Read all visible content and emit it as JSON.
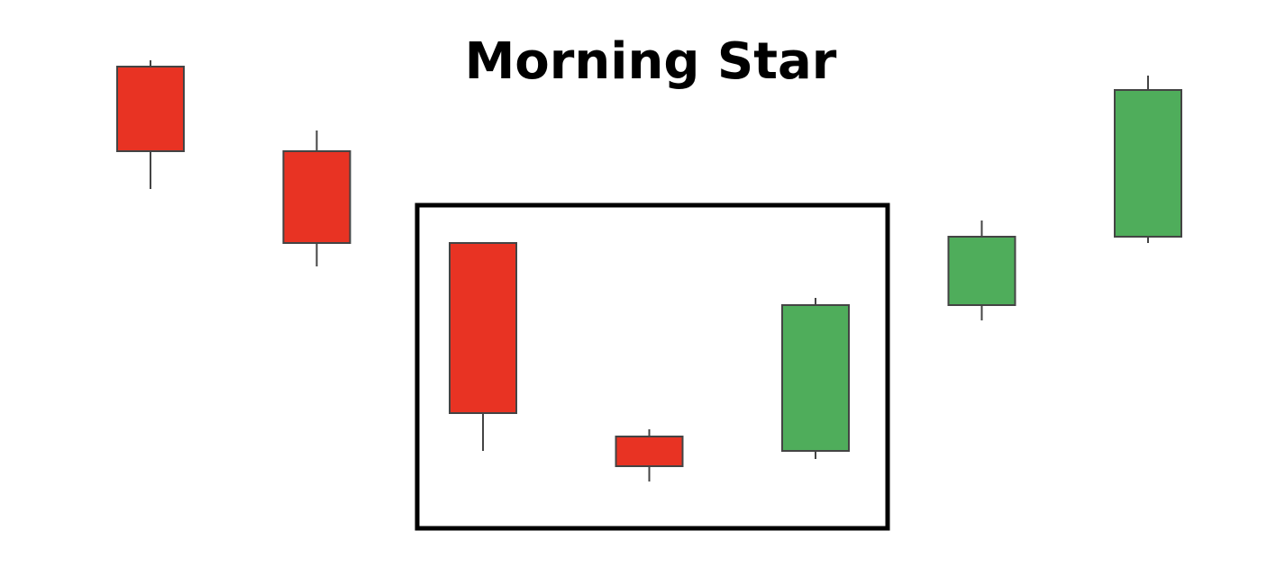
{
  "chart_data": {
    "type": "candlestick",
    "title": "Morning Star",
    "open": [
      556,
      462,
      360,
      145,
      129,
      291,
      367
    ],
    "high": [
      563,
      485,
      360,
      153,
      299,
      385,
      546
    ],
    "low": [
      420,
      334,
      129,
      95,
      120,
      274,
      360
    ],
    "close": [
      462,
      360,
      171,
      112,
      291,
      367,
      530
    ],
    "up_color": "#4fad5b",
    "down_color": "#e83323",
    "ylim": [
      0,
      630
    ]
  }
}
